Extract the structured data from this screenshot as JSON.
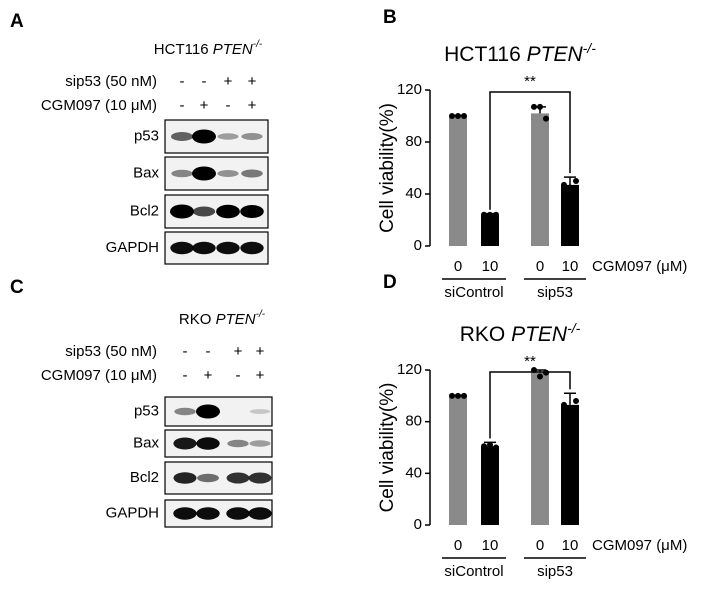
{
  "panels": [
    "A",
    "B",
    "C",
    "D"
  ],
  "blots": [
    {
      "cell_line": "HCT116",
      "gene": "PTEN",
      "genotype": "-/-",
      "treatments": [
        {
          "label": "sip53 (50 nM)",
          "signs": [
            "-",
            "-",
            "+",
            "+"
          ]
        },
        {
          "label": "CGM097 (10 μM)",
          "signs": [
            "-",
            "+",
            "-",
            "+"
          ]
        }
      ],
      "bands": [
        "p53",
        "Bax",
        "Bcl2",
        "GAPDH"
      ]
    },
    {
      "cell_line": "RKO",
      "gene": "PTEN",
      "genotype": "-/-",
      "treatments": [
        {
          "label": "sip53 (50 nM)",
          "signs": [
            "-",
            "-",
            "+",
            "+"
          ]
        },
        {
          "label": "CGM097 (10 μM)",
          "signs": [
            "-",
            "+",
            "-",
            "+"
          ]
        }
      ],
      "bands": [
        "p53",
        "Bax",
        "Bcl2",
        "GAPDH"
      ]
    }
  ],
  "chart_data": [
    {
      "type": "bar",
      "title": "HCT116",
      "title_gene": "PTEN",
      "title_genotype": "-/-",
      "y_label": "Cell viability(%)",
      "x_label": "CGM097 (μM)",
      "categories": [
        "0",
        "10",
        "0",
        "10"
      ],
      "groups": [
        "siControl",
        "sip53"
      ],
      "values": [
        100,
        24,
        102,
        47
      ],
      "errors": [
        0.5,
        0.8,
        5,
        6
      ],
      "points": [
        [
          100,
          100,
          100
        ],
        [
          24,
          24,
          24
        ],
        [
          107,
          107,
          98
        ],
        [
          47,
          45,
          50
        ]
      ],
      "colors": [
        "#8a8a8a",
        "#000000",
        "#8a8a8a",
        "#000000"
      ],
      "ylim": [
        0,
        120
      ],
      "yticks": [
        0,
        40,
        80,
        120
      ],
      "significance": "**"
    },
    {
      "type": "bar",
      "title": "RKO",
      "title_gene": "PTEN",
      "title_genotype": "-/-",
      "y_label": "Cell viability(%)",
      "x_label": "CGM097 (μM)",
      "categories": [
        "0",
        "10",
        "0",
        "10"
      ],
      "groups": [
        "siControl",
        "sip53"
      ],
      "values": [
        100,
        61,
        118,
        93
      ],
      "errors": [
        0.5,
        3,
        2,
        9
      ],
      "points": [
        [
          100,
          100,
          100
        ],
        [
          61,
          62,
          60
        ],
        [
          120,
          115,
          118
        ],
        [
          93,
          90,
          96
        ]
      ],
      "colors": [
        "#8a8a8a",
        "#000000",
        "#8a8a8a",
        "#000000"
      ],
      "ylim": [
        0,
        120
      ],
      "yticks": [
        0,
        40,
        80,
        120
      ],
      "significance": "**"
    }
  ]
}
